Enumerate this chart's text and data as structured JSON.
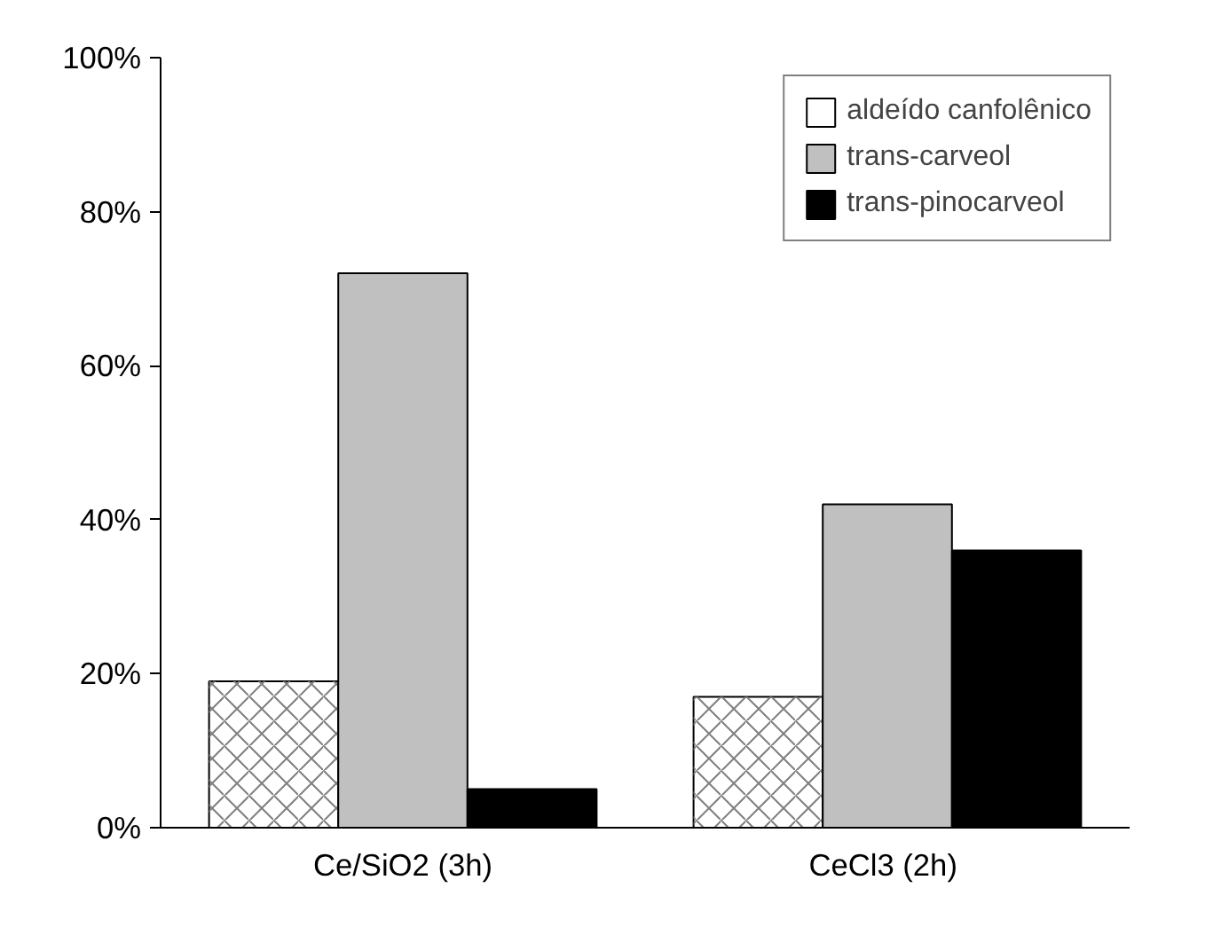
{
  "chart_data": {
    "type": "bar",
    "categories": [
      "Ce/SiO2 (3h)",
      "CeCl3  (2h)"
    ],
    "series": [
      {
        "name": "aldeído canfolênico",
        "color": "#ffffff",
        "values": [
          0.19,
          0.17
        ]
      },
      {
        "name": "trans-carveol",
        "color": "#c0c0c0",
        "values": [
          0.72,
          0.42
        ]
      },
      {
        "name": "trans-pinocarveol",
        "color": "#000000",
        "values": [
          0.05,
          0.36
        ]
      }
    ],
    "ylim": [
      0,
      1
    ],
    "yticks": [
      {
        "value": 0,
        "label": "0%"
      },
      {
        "value": 0.2,
        "label": "20%"
      },
      {
        "value": 0.4,
        "label": "40%"
      },
      {
        "value": 0.6,
        "label": "60%"
      },
      {
        "value": 0.8,
        "label": "80%"
      },
      {
        "value": 1,
        "label": "100%"
      }
    ],
    "grid": false,
    "legend": "top right"
  }
}
